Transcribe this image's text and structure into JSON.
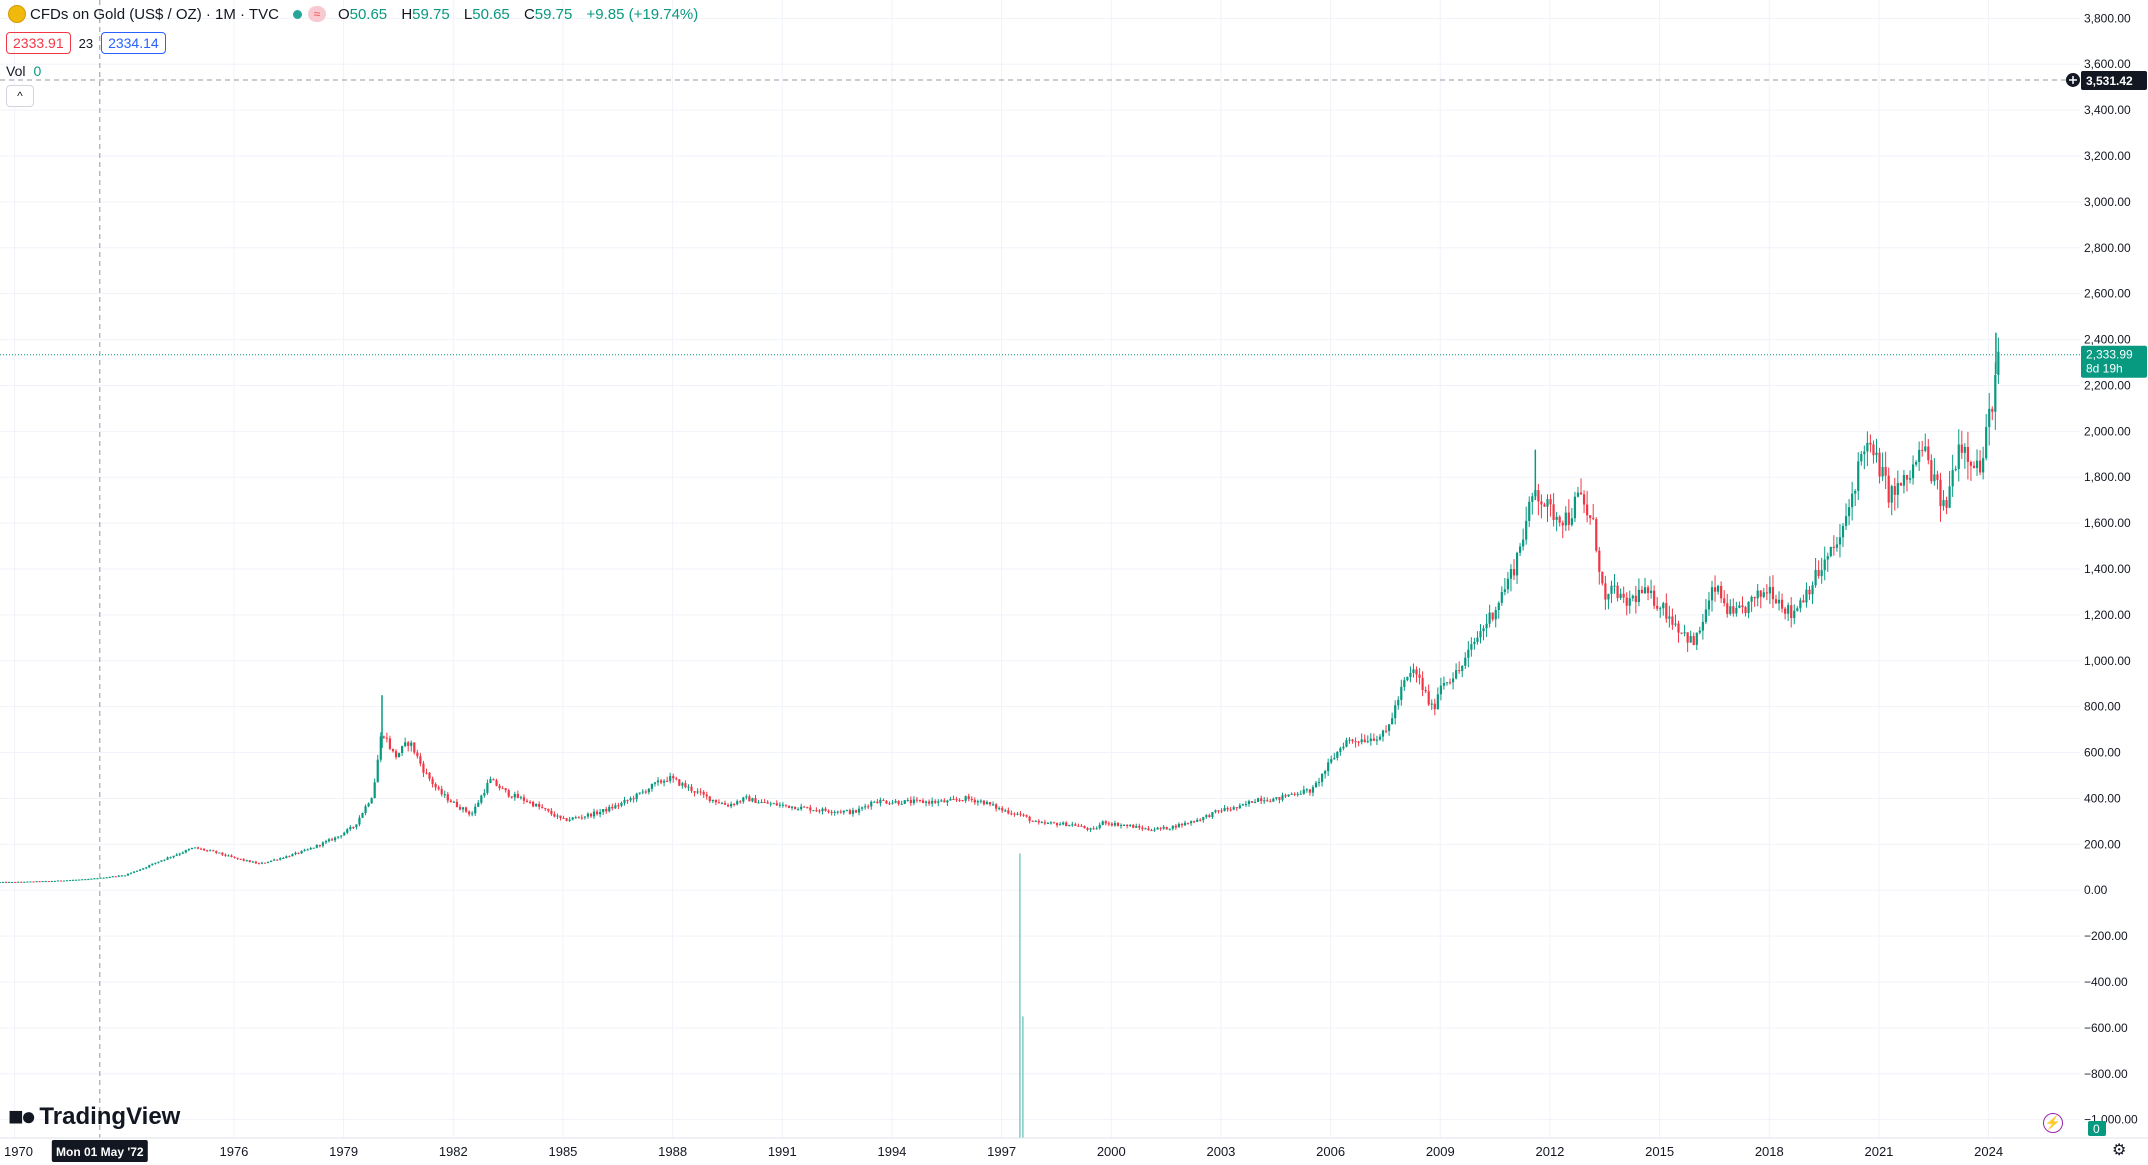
{
  "header": {
    "symbol_title": "CFDs on Gold (US$ / OZ) · 1M · TVC",
    "open_label": "O",
    "open": "50.65",
    "high_label": "H",
    "high": "59.75",
    "low_label": "L",
    "low": "50.65",
    "close_label": "C",
    "close": "59.75",
    "change": "+9.85 (+19.74%)",
    "bid": "2333.91",
    "spread": "23",
    "ask": "2334.14",
    "volume_label": "Vol",
    "volume_value": "0",
    "logo_text": "TradingView",
    "pill_symbol": "≈"
  },
  "chart_data": {
    "type": "candlestick",
    "title": "",
    "xlabel": "",
    "ylabel": "",
    "x_ticks": [
      "1970",
      "1976",
      "1979",
      "1982",
      "1985",
      "1988",
      "1991",
      "1994",
      "1997",
      "2000",
      "2003",
      "2006",
      "2009",
      "2012",
      "2015",
      "2018",
      "2021",
      "2024"
    ],
    "x_tick_years": [
      1970,
      1976,
      1979,
      1982,
      1985,
      1988,
      1991,
      1994,
      1997,
      2000,
      2003,
      2006,
      2009,
      2012,
      2015,
      2018,
      2021,
      2024
    ],
    "x_range": [
      1969.6,
      2026.5
    ],
    "y_ticks": [
      "3,800.00",
      "3,600.00",
      "3,400.00",
      "3,200.00",
      "3,000.00",
      "2,800.00",
      "2,600.00",
      "2,400.00",
      "2,200.00",
      "2,000.00",
      "1,800.00",
      "1,600.00",
      "1,400.00",
      "1,200.00",
      "1,000.00",
      "800.00",
      "600.00",
      "400.00",
      "200.00",
      "0.00",
      "−200.00",
      "−400.00",
      "−600.00",
      "−800.00",
      "−1,000.00"
    ],
    "y_tick_values": [
      3800,
      3600,
      3400,
      3200,
      3000,
      2800,
      2600,
      2400,
      2200,
      2000,
      1800,
      1600,
      1400,
      1200,
      1000,
      800,
      600,
      400,
      200,
      0,
      -200,
      -400,
      -600,
      -800,
      -1000
    ],
    "ylim": [
      -1080,
      3880
    ],
    "grid": true,
    "last_price": {
      "value": 2333.99,
      "label": "2,333.99",
      "countdown": "8d 19h",
      "color": "#089981"
    },
    "crosshair": {
      "date_label": "Mon 01 May '72",
      "date": 1972.33,
      "price_label": "3,531.42",
      "price": 3531.42
    },
    "spike": {
      "date": 1997.5,
      "high": 160,
      "low": -1100,
      "second_low": -550,
      "color": "#7ecbc4"
    },
    "volume_badge": "0",
    "colors": {
      "up": "#089981",
      "down": "#f23645",
      "grid": "#f0f3fa"
    },
    "price_path": [
      [
        1969.6,
        35.2
      ],
      [
        1970.0,
        35.5
      ],
      [
        1971.0,
        40
      ],
      [
        1972.0,
        48
      ],
      [
        1973.0,
        65
      ],
      [
        1973.5,
        95
      ],
      [
        1974.0,
        130
      ],
      [
        1974.9,
        185
      ],
      [
        1975.5,
        165
      ],
      [
        1976.0,
        140
      ],
      [
        1976.7,
        115
      ],
      [
        1977.5,
        150
      ],
      [
        1978.0,
        175
      ],
      [
        1978.8,
        230
      ],
      [
        1979.3,
        280
      ],
      [
        1979.8,
        420
      ],
      [
        1980.05,
        700
      ],
      [
        1980.4,
        580
      ],
      [
        1980.8,
        650
      ],
      [
        1981.2,
        520
      ],
      [
        1981.6,
        430
      ],
      [
        1982.0,
        380
      ],
      [
        1982.5,
        330
      ],
      [
        1983.0,
        480
      ],
      [
        1983.5,
        420
      ],
      [
        1984.0,
        390
      ],
      [
        1984.5,
        350
      ],
      [
        1985.0,
        305
      ],
      [
        1985.5,
        320
      ],
      [
        1986.0,
        340
      ],
      [
        1986.5,
        370
      ],
      [
        1987.0,
        410
      ],
      [
        1987.5,
        460
      ],
      [
        1987.9,
        490
      ],
      [
        1988.5,
        440
      ],
      [
        1989.0,
        400
      ],
      [
        1989.5,
        370
      ],
      [
        1990.0,
        400
      ],
      [
        1990.5,
        380
      ],
      [
        1991.0,
        370
      ],
      [
        1991.5,
        360
      ],
      [
        1992.0,
        350
      ],
      [
        1992.5,
        345
      ],
      [
        1993.0,
        340
      ],
      [
        1993.5,
        390
      ],
      [
        1994.0,
        385
      ],
      [
        1994.5,
        385
      ],
      [
        1995.0,
        385
      ],
      [
        1995.5,
        385
      ],
      [
        1996.0,
        400
      ],
      [
        1996.5,
        385
      ],
      [
        1997.0,
        350
      ],
      [
        1997.5,
        330
      ],
      [
        1998.0,
        290
      ],
      [
        1998.5,
        290
      ],
      [
        1999.0,
        285
      ],
      [
        1999.5,
        260
      ],
      [
        1999.8,
        300
      ],
      [
        2000.0,
        290
      ],
      [
        2000.5,
        280
      ],
      [
        2001.0,
        265
      ],
      [
        2001.5,
        270
      ],
      [
        2002.0,
        290
      ],
      [
        2002.5,
        315
      ],
      [
        2003.0,
        350
      ],
      [
        2003.5,
        360
      ],
      [
        2004.0,
        400
      ],
      [
        2004.5,
        395
      ],
      [
        2005.0,
        425
      ],
      [
        2005.5,
        435
      ],
      [
        2006.0,
        560
      ],
      [
        2006.4,
        650
      ],
      [
        2007.0,
        660
      ],
      [
        2007.5,
        680
      ],
      [
        2008.0,
        900
      ],
      [
        2008.3,
        960
      ],
      [
        2008.8,
        780
      ],
      [
        2009.0,
        900
      ],
      [
        2009.5,
        950
      ],
      [
        2010.0,
        1100
      ],
      [
        2010.5,
        1230
      ],
      [
        2011.0,
        1400
      ],
      [
        2011.6,
        1750
      ],
      [
        2012.0,
        1650
      ],
      [
        2012.5,
        1620
      ],
      [
        2012.8,
        1720
      ],
      [
        2013.2,
        1580
      ],
      [
        2013.5,
        1250
      ],
      [
        2013.8,
        1320
      ],
      [
        2014.0,
        1240
      ],
      [
        2014.5,
        1300
      ],
      [
        2015.0,
        1250
      ],
      [
        2015.5,
        1150
      ],
      [
        2015.95,
        1070
      ],
      [
        2016.5,
        1320
      ],
      [
        2017.0,
        1190
      ],
      [
        2017.5,
        1250
      ],
      [
        2018.0,
        1320
      ],
      [
        2018.6,
        1200
      ],
      [
        2019.0,
        1300
      ],
      [
        2019.5,
        1420
      ],
      [
        2020.0,
        1550
      ],
      [
        2020.6,
        1950
      ],
      [
        2021.0,
        1850
      ],
      [
        2021.3,
        1720
      ],
      [
        2021.8,
        1790
      ],
      [
        2022.2,
        1930
      ],
      [
        2022.8,
        1650
      ],
      [
        2023.2,
        1960
      ],
      [
        2023.8,
        1830
      ],
      [
        2024.0,
        2050
      ],
      [
        2024.3,
        2330
      ]
    ]
  }
}
